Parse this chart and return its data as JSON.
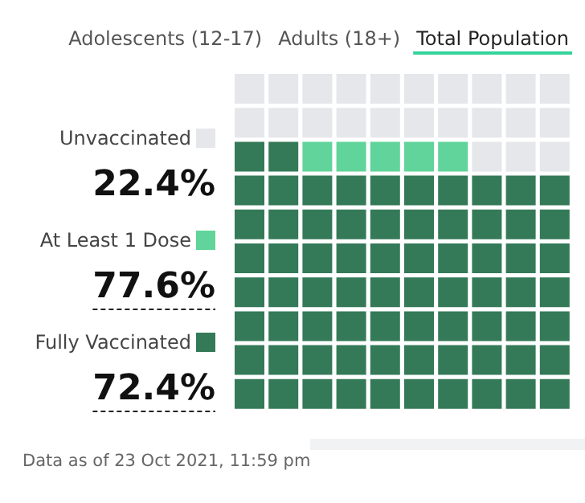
{
  "chart_data": {
    "type": "other",
    "categories": [
      "Unvaccinated",
      "At Least 1 Dose",
      "Fully Vaccinated"
    ],
    "values": [
      22.4,
      77.6,
      72.4
    ],
    "colors": [
      "#e5e7eb",
      "#60d49a",
      "#347a58"
    ],
    "value_labels": [
      "22.4%",
      "77.6%",
      "72.4%"
    ],
    "annotations": [
      "Adolescents (12-17)",
      "Adults (18+)",
      "Total Population",
      "Data as of 23 Oct 2021, 11:59 pm"
    ]
  }
}
